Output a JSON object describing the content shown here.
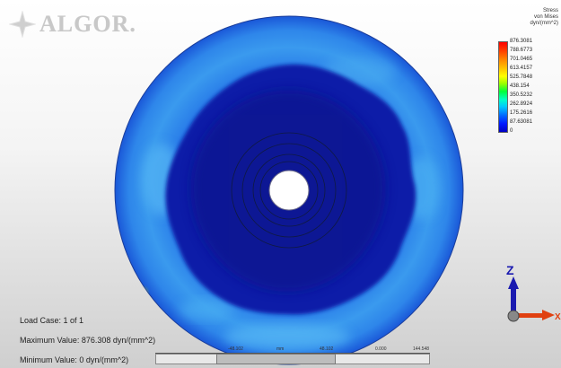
{
  "logo": {
    "text": "ALGOR."
  },
  "legend": {
    "title_lines": [
      "Stress",
      "von Mises",
      "dyn/(mm^2)"
    ],
    "ticks": [
      "876.3081",
      "788.6773",
      "701.0465",
      "613.4157",
      "525.7848",
      "438.154",
      "350.5232",
      "262.8924",
      "175.2616",
      "87.63081",
      "0"
    ]
  },
  "info": {
    "load_case": "Load Case:  1 of 1",
    "max_value": "Maximum Value: 876.308 dyn/(mm^2)",
    "min_value": "Minimum Value: 0 dyn/(mm^2)"
  },
  "slider": {
    "labels": [
      "-48.102",
      "mm",
      "48.102",
      "0.000",
      "144.548"
    ]
  },
  "triad": {
    "z_label": "Z",
    "x_label": "X"
  },
  "colors": {
    "deep_blue": "#0a1ea8",
    "mid_blue": "#1e64e6",
    "light_blue": "#3fa6f0",
    "hot_spot": "#ffd000"
  }
}
